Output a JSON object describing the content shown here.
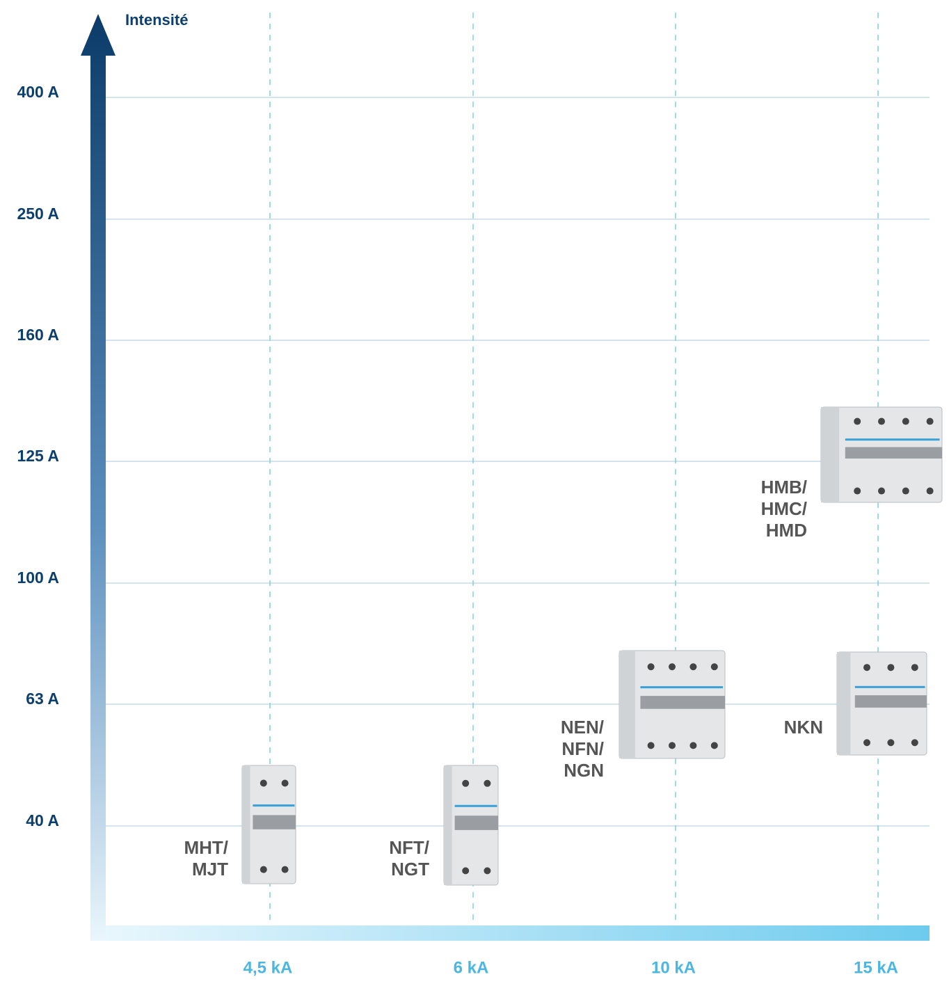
{
  "axis_title": "Intensité",
  "y_labels": [
    "400 A",
    "250 A",
    "160 A",
    "125 A",
    "100 A",
    "63 A",
    "40 A"
  ],
  "x_labels": [
    "4,5 kA",
    "6 kA",
    "10 kA",
    "15 kA"
  ],
  "products": [
    {
      "lines": [
        "MHT/",
        "MJT"
      ]
    },
    {
      "lines": [
        "NFT/",
        "NGT"
      ]
    },
    {
      "lines": [
        "NEN/",
        "NFN/",
        "NGN"
      ]
    },
    {
      "lines": [
        "NKN"
      ]
    },
    {
      "lines": [
        "HMB/",
        "HMC/",
        "HMD"
      ]
    }
  ]
}
